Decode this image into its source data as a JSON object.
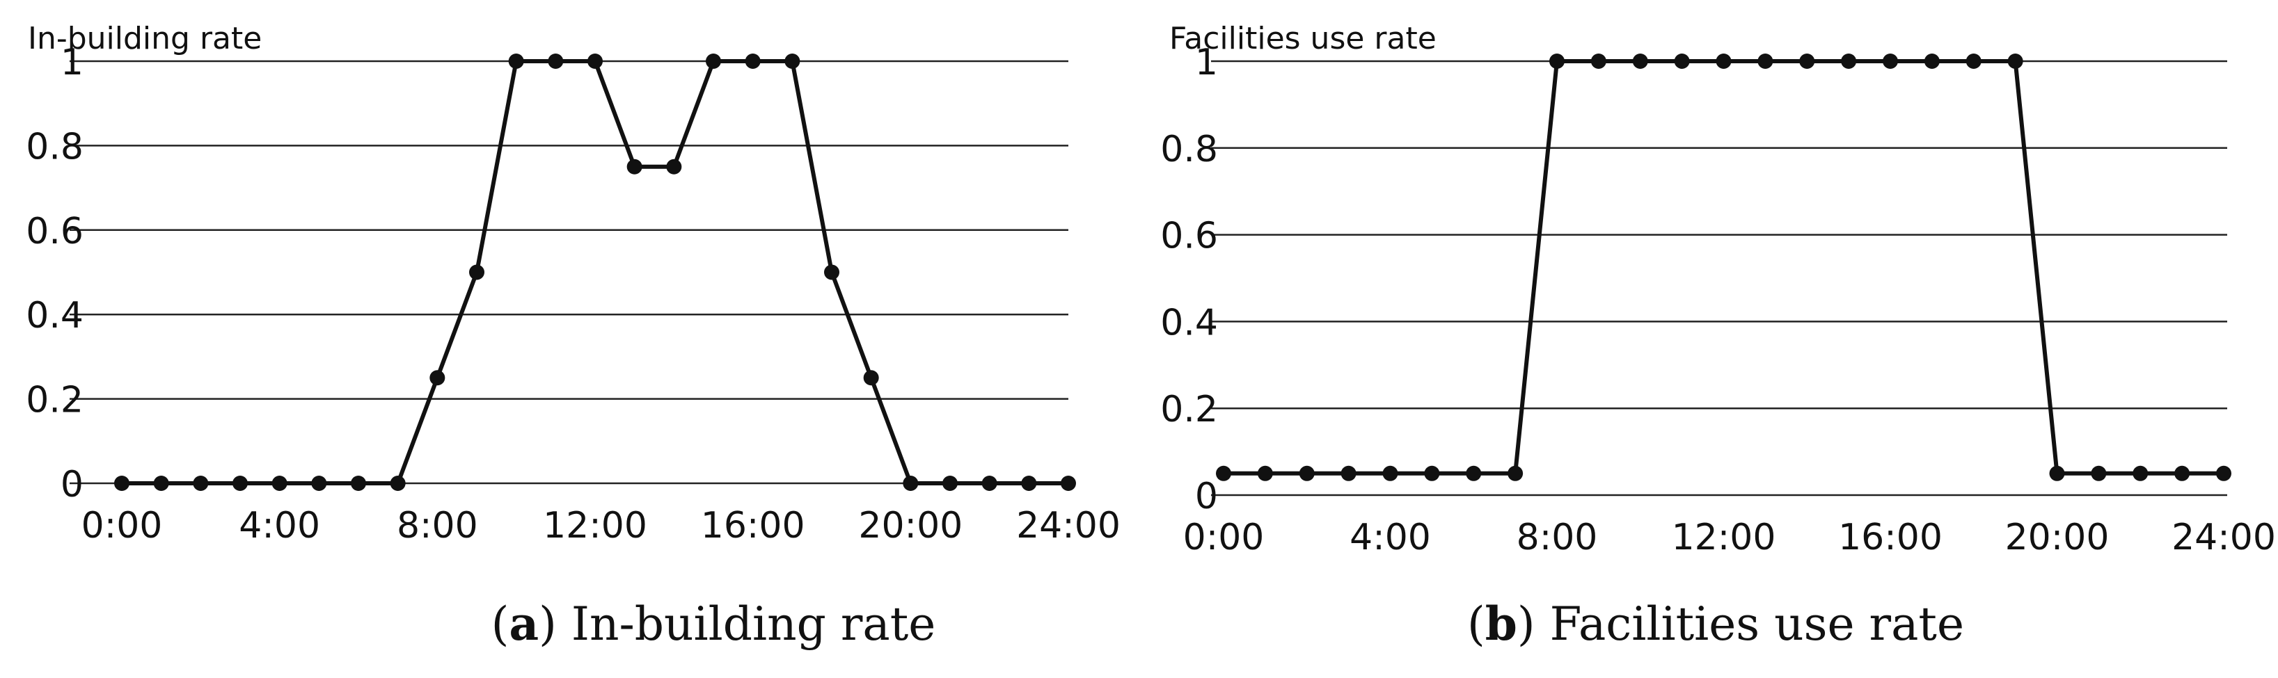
{
  "chart_data": [
    {
      "id": "a",
      "type": "line",
      "title": "In-building rate",
      "ylabel": "In-building rate",
      "xlabel": "",
      "caption_tag": "a",
      "caption_text": "In-building rate",
      "xlim": [
        0,
        24
      ],
      "ylim": [
        0,
        1
      ],
      "x_ticks": [
        0,
        4,
        8,
        12,
        16,
        20,
        24
      ],
      "x_tick_labels": [
        "0:00",
        "4:00",
        "8:00",
        "12:00",
        "16:00",
        "20:00",
        "24:00"
      ],
      "y_ticks": [
        0,
        0.2,
        0.4,
        0.6,
        0.8,
        1
      ],
      "y_tick_labels": [
        "0",
        "0.2",
        "0.4",
        "0.6",
        "0.8",
        "1"
      ],
      "grid": true,
      "line_color": "#111111",
      "series": [
        {
          "name": "In-building rate",
          "x": [
            0,
            1,
            2,
            3,
            4,
            5,
            6,
            7,
            8,
            9,
            10,
            11,
            12,
            13,
            14,
            15,
            16,
            17,
            18,
            19,
            20,
            21,
            22,
            23,
            24
          ],
          "values": [
            0,
            0,
            0,
            0,
            0,
            0,
            0,
            0,
            0.25,
            0.5,
            1,
            1,
            1,
            0.75,
            0.75,
            1,
            1,
            1,
            0.5,
            0.25,
            0,
            0,
            0,
            0,
            0
          ]
        }
      ]
    },
    {
      "id": "b",
      "type": "line",
      "title": "Facilities use rate",
      "ylabel": "Facilities use rate",
      "xlabel": "",
      "caption_tag": "b",
      "caption_text": "Facilities use rate",
      "xlim": [
        0,
        24
      ],
      "ylim": [
        0,
        1
      ],
      "x_ticks": [
        0,
        4,
        8,
        12,
        16,
        20,
        24
      ],
      "x_tick_labels": [
        "0:00",
        "4:00",
        "8:00",
        "12:00",
        "16:00",
        "20:00",
        "24:00"
      ],
      "y_ticks": [
        0,
        0.2,
        0.4,
        0.6,
        0.8,
        1
      ],
      "y_tick_labels": [
        "0",
        "0.2",
        "0.4",
        "0.6",
        "0.8",
        "1"
      ],
      "grid": true,
      "line_color": "#111111",
      "series": [
        {
          "name": "Facilities use rate",
          "x": [
            0,
            1,
            2,
            3,
            4,
            5,
            6,
            7,
            8,
            9,
            10,
            11,
            12,
            13,
            14,
            15,
            16,
            17,
            18,
            19,
            20,
            21,
            22,
            23,
            24
          ],
          "values": [
            0.05,
            0.05,
            0.05,
            0.05,
            0.05,
            0.05,
            0.05,
            0.05,
            1,
            1,
            1,
            1,
            1,
            1,
            1,
            1,
            1,
            1,
            1,
            1,
            0.05,
            0.05,
            0.05,
            0.05,
            0.05
          ]
        }
      ]
    }
  ]
}
